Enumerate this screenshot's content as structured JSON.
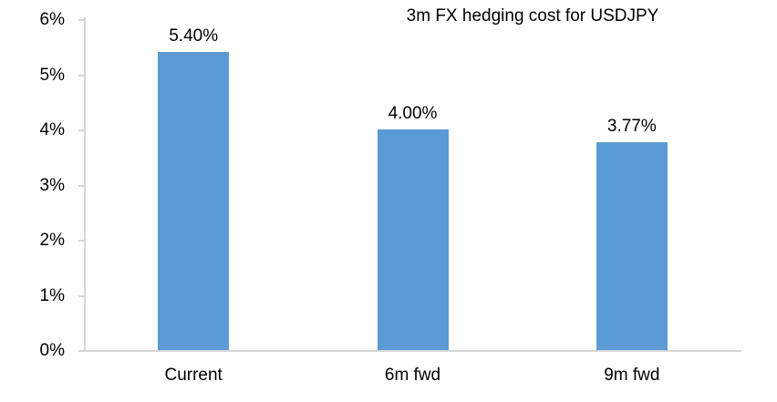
{
  "chart_data": {
    "type": "bar",
    "title": "3m FX hedging cost for USDJPY",
    "categories": [
      "Current",
      "6m fwd",
      "9m fwd"
    ],
    "values": [
      5.4,
      4.0,
      3.77
    ],
    "value_labels": [
      "5.40%",
      "4.00%",
      "3.77%"
    ],
    "xlabel": "",
    "ylabel": "",
    "ylim": [
      0,
      6
    ],
    "yticks": [
      {
        "label": "0%",
        "value": 0
      },
      {
        "label": "1%",
        "value": 1
      },
      {
        "label": "2%",
        "value": 2
      },
      {
        "label": "3%",
        "value": 3
      },
      {
        "label": "4%",
        "value": 4
      },
      {
        "label": "5%",
        "value": 5
      },
      {
        "label": "6%",
        "value": 6
      }
    ],
    "grid": false,
    "legend": "none",
    "colors": {
      "bar_fill": "#5b9bd5",
      "axis_line": "#d6d6d6",
      "text": "#000000",
      "background": "#ffffff"
    }
  }
}
